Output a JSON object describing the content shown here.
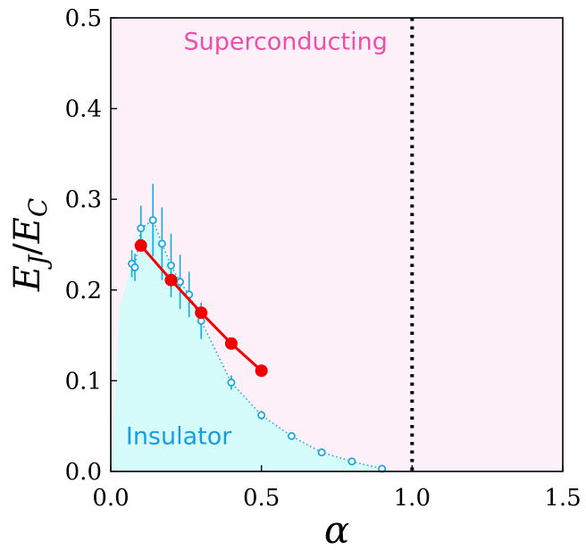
{
  "chart_data": {
    "type": "scatter",
    "xlabel": "α",
    "ylabel": "E_J / E_C",
    "xlim": [
      0.0,
      1.5
    ],
    "ylim": [
      0.0,
      0.5
    ],
    "x_ticks": [
      "0.0",
      "0.5",
      "1.0",
      "1.5"
    ],
    "y_ticks": [
      "0.0",
      "0.1",
      "0.2",
      "0.3",
      "0.4",
      "0.5"
    ],
    "grid": false,
    "annotations": {
      "superconducting": "Superconducting",
      "insulator": "Insulator"
    },
    "phase_boundary_x": 1.0,
    "series": [
      {
        "style": "open-markers-dotted-errorbars",
        "color": "#1aa8e0",
        "x": [
          0.07,
          0.08,
          0.1,
          0.14,
          0.17,
          0.2,
          0.23,
          0.26,
          0.3,
          0.4,
          0.5,
          0.6,
          0.7,
          0.8,
          0.9
        ],
        "y": [
          0.229,
          0.225,
          0.268,
          0.277,
          0.251,
          0.227,
          0.209,
          0.195,
          0.166,
          0.098,
          0.062,
          0.039,
          0.021,
          0.011,
          0.003
        ],
        "err": [
          0.015,
          0.015,
          0.025,
          0.04,
          0.04,
          0.035,
          0.03,
          0.025,
          0.02,
          0.008,
          0.005,
          0.004,
          0.003,
          0.002,
          0.002
        ]
      },
      {
        "style": "filled-markers-solid-line",
        "color": "#f00000",
        "x": [
          0.1,
          0.2,
          0.3,
          0.4,
          0.5
        ],
        "y": [
          0.249,
          0.211,
          0.175,
          0.141,
          0.111
        ]
      }
    ],
    "colors": {
      "superconducting_fill": "#fdf0f8",
      "insulator_fill": "#d5fbfb",
      "superconducting_text": "#ee4faa",
      "insulator_text": "#1a9de0",
      "boundary_line": "#000000"
    }
  }
}
